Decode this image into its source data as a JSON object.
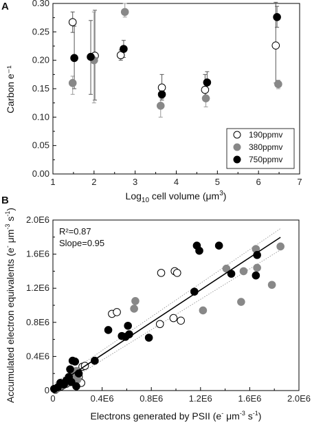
{
  "figure": {
    "panel_a_letter": "A",
    "panel_b_letter": "B"
  },
  "chart_data": [
    {
      "type": "scatter",
      "panel": "A",
      "xlabel": {
        "pre": "Log",
        "sub": "10",
        "mid": " cell volume (μm",
        "sup": "3",
        "post": ")"
      },
      "ylabel": "Carbon e⁻¹",
      "xlim": [
        1,
        7
      ],
      "ylim": [
        0,
        0.3
      ],
      "xticks": [
        "1",
        "2",
        "3",
        "4",
        "5",
        "6",
        "7"
      ],
      "yticks": [
        "0.00",
        "0.05",
        "0.10",
        "0.15",
        "0.20",
        "0.25",
        "0.30"
      ],
      "grid": false,
      "legend_position": "bottom-right",
      "series": [
        {
          "name": "190ppmv",
          "color": "#ffffff",
          "stroke": "#000000",
          "points": [
            {
              "x": 1.48,
              "y": 0.267,
              "lo": 0.249,
              "hi": 0.285
            },
            {
              "x": 2.02,
              "y": 0.208,
              "lo": 0.13,
              "hi": 0.288
            },
            {
              "x": 2.65,
              "y": 0.209,
              "lo": 0.2,
              "hi": 0.218
            },
            {
              "x": 3.65,
              "y": 0.152,
              "lo": 0.133,
              "hi": 0.175
            },
            {
              "x": 4.7,
              "y": 0.148,
              "lo": 0.13,
              "hi": 0.175
            },
            {
              "x": 6.42,
              "y": 0.226,
              "lo": 0.16,
              "hi": 0.302
            }
          ]
        },
        {
          "name": "380ppmv",
          "color": "#888888",
          "stroke": "#888888",
          "points": [
            {
              "x": 1.48,
              "y": 0.16,
              "lo": 0.14,
              "hi": 0.172
            },
            {
              "x": 2.0,
              "y": 0.2,
              "lo": 0.125,
              "hi": 0.285
            },
            {
              "x": 2.75,
              "y": 0.285,
              "lo": 0.276,
              "hi": 0.3
            },
            {
              "x": 3.62,
              "y": 0.12,
              "lo": 0.1,
              "hi": 0.135
            },
            {
              "x": 4.72,
              "y": 0.133,
              "lo": 0.118,
              "hi": 0.15
            },
            {
              "x": 6.48,
              "y": 0.158,
              "lo": 0.15,
              "hi": 0.165
            }
          ]
        },
        {
          "name": "750ppmv",
          "color": "#000000",
          "stroke": "#000000",
          "points": [
            {
              "x": 1.52,
              "y": 0.204,
              "lo": 0.15,
              "hi": 0.26
            },
            {
              "x": 1.92,
              "y": 0.206,
              "lo": 0.14,
              "hi": 0.27
            },
            {
              "x": 2.72,
              "y": 0.22,
              "lo": 0.205,
              "hi": 0.235
            },
            {
              "x": 3.65,
              "y": 0.14,
              "lo": 0.13,
              "hi": 0.15
            },
            {
              "x": 4.75,
              "y": 0.161,
              "lo": 0.15,
              "hi": 0.18
            },
            {
              "x": 6.45,
              "y": 0.276,
              "lo": 0.258,
              "hi": 0.295
            }
          ]
        }
      ]
    },
    {
      "type": "scatter",
      "panel": "B",
      "xlabel": {
        "pre": "Electrons generated by PSII (e",
        "sup1": "-",
        "mid": " μm",
        "sup2": "-3",
        "mid2": " s",
        "sup3": "-1",
        "post": ")"
      },
      "ylabel": {
        "pre": "Accumulated electron equivalents (e",
        "sup1": "-",
        "mid": " μm",
        "sup2": "-3",
        "mid2": " s",
        "sup3": "-1",
        "post": ")"
      },
      "xlim": [
        0,
        2000000
      ],
      "ylim": [
        0,
        2000000
      ],
      "xticks": [
        "0",
        "0.4E6",
        "0.8E6",
        "1.2E6",
        "1.6E6",
        "2.0E6"
      ],
      "yticks": [
        "0",
        "0.4E6",
        "0.8E6",
        "1.2E6",
        "1.6E6",
        "2.0E6"
      ],
      "grid": false,
      "annotations": [
        "R²=0.87",
        "Slope=0.95"
      ],
      "regression": {
        "slope": 0.95,
        "intercept": 40000,
        "x_range": [
          0,
          1850000
        ]
      },
      "confidence_band": {
        "lower_end": 1650000,
        "upper_end": 1900000,
        "lower_start": 0,
        "upper_start": 75000
      },
      "series": [
        {
          "name": "190ppmv",
          "color": "#ffffff",
          "stroke": "#000000",
          "points": [
            {
              "x": 20000,
              "y": 10000
            },
            {
              "x": 40000,
              "y": 30000
            },
            {
              "x": 70000,
              "y": 50000
            },
            {
              "x": 110000,
              "y": 80000
            },
            {
              "x": 140000,
              "y": 100000
            },
            {
              "x": 170000,
              "y": 120000
            },
            {
              "x": 210000,
              "y": 160000
            },
            {
              "x": 230000,
              "y": 90000
            },
            {
              "x": 240000,
              "y": 280000
            },
            {
              "x": 260000,
              "y": 290000
            },
            {
              "x": 480000,
              "y": 900000
            },
            {
              "x": 520000,
              "y": 920000
            },
            {
              "x": 870000,
              "y": 780000
            },
            {
              "x": 880000,
              "y": 1380000
            },
            {
              "x": 980000,
              "y": 850000
            },
            {
              "x": 990000,
              "y": 1400000
            },
            {
              "x": 1010000,
              "y": 1380000
            },
            {
              "x": 1040000,
              "y": 820000
            }
          ]
        },
        {
          "name": "380ppmv",
          "color": "#888888",
          "stroke": "#888888",
          "points": [
            {
              "x": 30000,
              "y": 20000
            },
            {
              "x": 80000,
              "y": 60000
            },
            {
              "x": 130000,
              "y": 100000
            },
            {
              "x": 150000,
              "y": 140000
            },
            {
              "x": 160000,
              "y": 210000
            },
            {
              "x": 180000,
              "y": 180000
            },
            {
              "x": 190000,
              "y": 230000
            },
            {
              "x": 200000,
              "y": 130000
            },
            {
              "x": 660000,
              "y": 960000
            },
            {
              "x": 670000,
              "y": 1050000
            },
            {
              "x": 1220000,
              "y": 940000
            },
            {
              "x": 1410000,
              "y": 1430000
            },
            {
              "x": 1530000,
              "y": 1040000
            },
            {
              "x": 1550000,
              "y": 1400000
            },
            {
              "x": 1650000,
              "y": 1660000
            },
            {
              "x": 1660000,
              "y": 1440000
            },
            {
              "x": 1780000,
              "y": 1240000
            },
            {
              "x": 1850000,
              "y": 1690000
            }
          ]
        },
        {
          "name": "750ppmv",
          "color": "#000000",
          "stroke": "#000000",
          "points": [
            {
              "x": 10000,
              "y": 20000
            },
            {
              "x": 40000,
              "y": 40000
            },
            {
              "x": 60000,
              "y": 90000
            },
            {
              "x": 90000,
              "y": 70000
            },
            {
              "x": 110000,
              "y": 120000
            },
            {
              "x": 130000,
              "y": 160000
            },
            {
              "x": 140000,
              "y": 250000
            },
            {
              "x": 150000,
              "y": 100000
            },
            {
              "x": 160000,
              "y": 350000
            },
            {
              "x": 180000,
              "y": 340000
            },
            {
              "x": 190000,
              "y": 50000
            },
            {
              "x": 210000,
              "y": 200000
            },
            {
              "x": 340000,
              "y": 350000
            },
            {
              "x": 450000,
              "y": 710000
            },
            {
              "x": 560000,
              "y": 640000
            },
            {
              "x": 590000,
              "y": 630000
            },
            {
              "x": 610000,
              "y": 760000
            },
            {
              "x": 620000,
              "y": 660000
            },
            {
              "x": 780000,
              "y": 620000
            },
            {
              "x": 1150000,
              "y": 1160000
            },
            {
              "x": 1170000,
              "y": 1700000
            },
            {
              "x": 1190000,
              "y": 1640000
            },
            {
              "x": 1350000,
              "y": 1700000
            },
            {
              "x": 1450000,
              "y": 1370000
            },
            {
              "x": 1650000,
              "y": 1350000
            },
            {
              "x": 1660000,
              "y": 1590000
            }
          ]
        }
      ]
    }
  ]
}
